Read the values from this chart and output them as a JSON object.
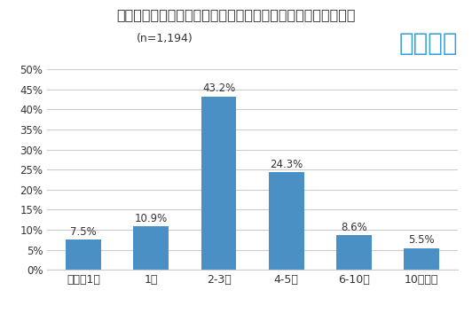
{
  "title": "コロナが流行する以前は「年に何回」旅行をしていましたか？",
  "subtitle": "(n=1,194)",
  "brand": "エアトリ",
  "categories": [
    "数年に1回",
    "1回",
    "2-3回",
    "4-5回",
    "6-10回",
    "10回以上"
  ],
  "values": [
    7.5,
    10.9,
    43.2,
    24.3,
    8.6,
    5.5
  ],
  "bar_color": "#4a90c4",
  "background_color": "#ffffff",
  "ylim": [
    0,
    50
  ],
  "yticks": [
    0,
    5,
    10,
    15,
    20,
    25,
    30,
    35,
    40,
    45,
    50
  ],
  "ytick_labels": [
    "0%",
    "5%",
    "10%",
    "15%",
    "20%",
    "25%",
    "30%",
    "35%",
    "40%",
    "45%",
    "50%"
  ],
  "title_fontsize": 11.5,
  "subtitle_fontsize": 9,
  "brand_fontsize": 20,
  "brand_color": "#3aa0d8",
  "value_label_fontsize": 8.5,
  "xlabel_fontsize": 9,
  "ylabel_fontsize": 8.5,
  "grid_color": "#cccccc",
  "axis_label_color": "#333333"
}
